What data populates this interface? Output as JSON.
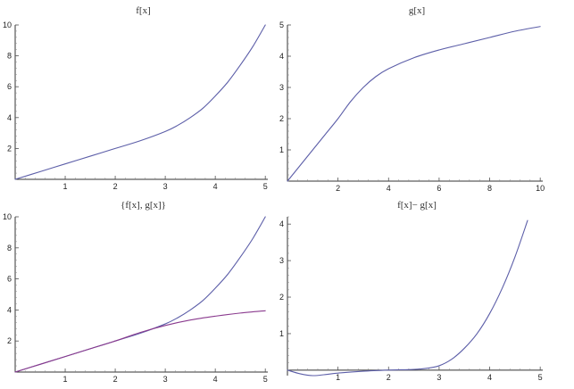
{
  "chart_data": [
    {
      "type": "line",
      "title": "f[x]",
      "xlim": [
        0,
        5.05
      ],
      "ylim": [
        0,
        10
      ],
      "xticks": [
        1,
        2,
        3,
        4,
        5
      ],
      "xtick_labels": [
        "1",
        "2",
        "3",
        "4",
        "5"
      ],
      "yticks": [
        2,
        4,
        6,
        8,
        10
      ],
      "ytick_labels": [
        "2",
        "4",
        "6",
        "8",
        "10"
      ],
      "series": [
        {
          "color": "#5c5ea8",
          "x": [
            0,
            0.5,
            1,
            1.5,
            2,
            2.5,
            3,
            3.25,
            3.5,
            3.75,
            4,
            4.25,
            4.5,
            4.75,
            5
          ],
          "y": [
            0,
            0.5,
            1,
            1.5,
            2,
            2.5,
            3.1,
            3.5,
            4.0,
            4.6,
            5.4,
            6.3,
            7.4,
            8.6,
            10
          ]
        }
      ]
    },
    {
      "type": "line",
      "title": "g[x]",
      "xlim": [
        0,
        10.1
      ],
      "ylim": [
        0,
        5
      ],
      "xticks": [
        2,
        4,
        6,
        8,
        10
      ],
      "xtick_labels": [
        "2",
        "4",
        "6",
        "8",
        "10"
      ],
      "yticks": [
        1,
        2,
        3,
        4,
        5
      ],
      "ytick_labels": [
        "1",
        "2",
        "3",
        "4",
        "5"
      ],
      "series": [
        {
          "color": "#5c5ea8",
          "x": [
            0,
            0.5,
            1,
            1.5,
            2,
            2.5,
            3,
            3.5,
            4,
            5,
            6,
            7,
            8,
            9,
            10
          ],
          "y": [
            0,
            0.5,
            1.0,
            1.5,
            2.0,
            2.55,
            3.0,
            3.35,
            3.6,
            3.95,
            4.2,
            4.4,
            4.6,
            4.8,
            4.95
          ]
        }
      ]
    },
    {
      "type": "line",
      "title": "{f[x], g[x]}",
      "xlim": [
        0,
        5.05
      ],
      "ylim": [
        0,
        10
      ],
      "xticks": [
        1,
        2,
        3,
        4,
        5
      ],
      "xtick_labels": [
        "1",
        "2",
        "3",
        "4",
        "5"
      ],
      "yticks": [
        2,
        4,
        6,
        8,
        10
      ],
      "ytick_labels": [
        "2",
        "4",
        "6",
        "8",
        "10"
      ],
      "series": [
        {
          "color": "#5c5ea8",
          "x": [
            0,
            0.5,
            1,
            1.5,
            2,
            2.5,
            3,
            3.25,
            3.5,
            3.75,
            4,
            4.25,
            4.5,
            4.75,
            5
          ],
          "y": [
            0,
            0.5,
            1,
            1.5,
            2,
            2.5,
            3.1,
            3.5,
            4.0,
            4.6,
            5.4,
            6.3,
            7.4,
            8.6,
            10
          ]
        },
        {
          "color": "#8a3a8e",
          "x": [
            0,
            0.5,
            1,
            1.5,
            2,
            2.5,
            3,
            3.5,
            4,
            4.5,
            5
          ],
          "y": [
            0,
            0.5,
            1.0,
            1.5,
            2.0,
            2.55,
            3.0,
            3.35,
            3.6,
            3.8,
            3.95
          ]
        }
      ]
    },
    {
      "type": "line",
      "title": "f[x]− g[x]",
      "xlim": [
        0,
        5.05
      ],
      "ylim": [
        -0.15,
        4.2
      ],
      "xticks": [
        1,
        2,
        3,
        4,
        5
      ],
      "xtick_labels": [
        "1",
        "2",
        "3",
        "4",
        "5"
      ],
      "yticks": [
        1,
        2,
        3,
        4
      ],
      "ytick_labels": [
        "1",
        "2",
        "3",
        "4"
      ],
      "series": [
        {
          "color": "#5c5ea8",
          "x": [
            0,
            0.25,
            0.5,
            0.75,
            1,
            1.5,
            2,
            2.5,
            2.75,
            3,
            3.25,
            3.5,
            3.75,
            4,
            4.25,
            4.5,
            4.75
          ],
          "y": [
            0,
            -0.1,
            -0.15,
            -0.12,
            -0.08,
            -0.03,
            0,
            0.02,
            0.05,
            0.12,
            0.3,
            0.6,
            1.0,
            1.55,
            2.25,
            3.1,
            4.1
          ]
        }
      ]
    }
  ]
}
